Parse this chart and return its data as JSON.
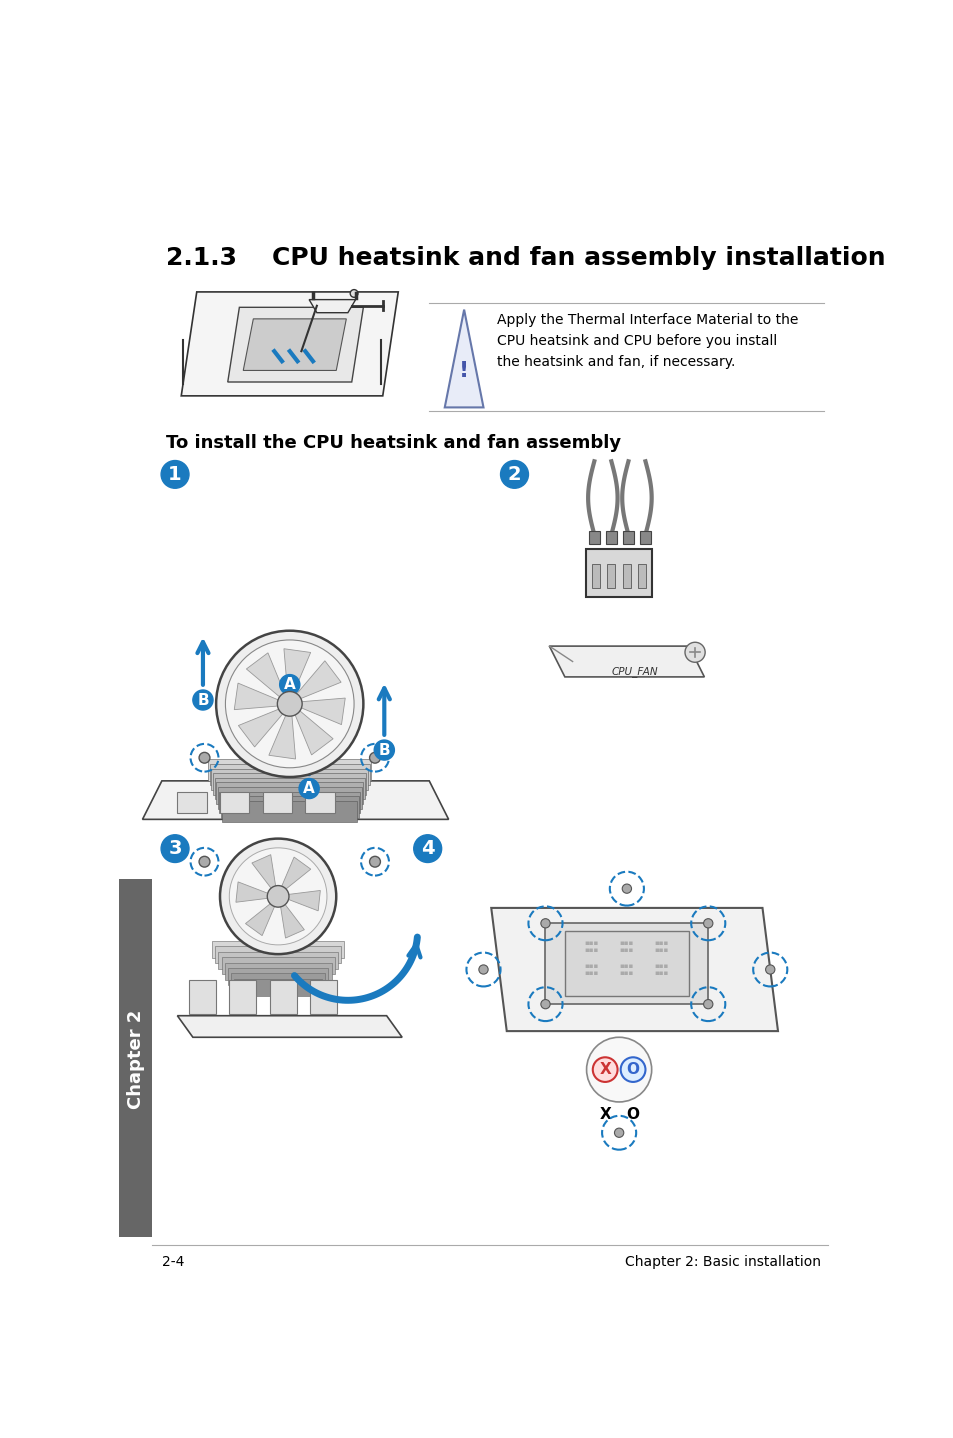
{
  "title": "2.1.3    CPU heatsink and fan assembly installation",
  "subtitle": "To install the CPU heatsink and fan assembly",
  "warning_text": "Apply the Thermal Interface Material to the\nCPU heatsink and CPU before you install\nthe heatsink and fan, if necessary.",
  "footer_left": "2-4",
  "footer_right": "Chapter 2: Basic installation",
  "chapter_label": "Chapter 2",
  "bg_color": "#ffffff",
  "text_color": "#000000",
  "blue_color": "#1a7abf",
  "gray_color": "#666666",
  "light_gray": "#eeeeee",
  "dark_gray": "#333333"
}
